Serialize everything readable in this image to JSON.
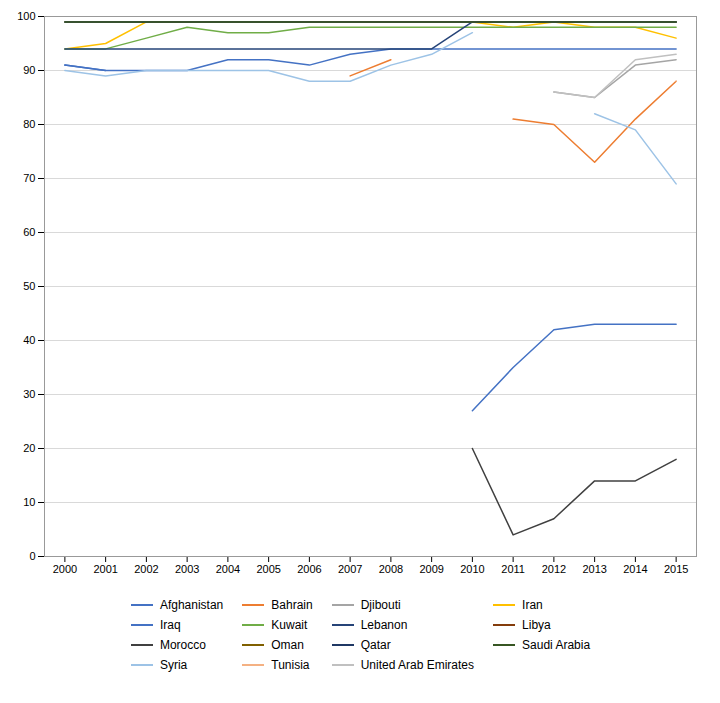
{
  "chart_data": {
    "type": "line",
    "x": [
      2000,
      2001,
      2002,
      2003,
      2004,
      2005,
      2006,
      2007,
      2008,
      2009,
      2010,
      2011,
      2012,
      2013,
      2014,
      2015
    ],
    "series": [
      {
        "name": "Afghanistan",
        "color": "#4472C4",
        "values": [
          91,
          90,
          null,
          null,
          null,
          null,
          null,
          null,
          null,
          null,
          27,
          35,
          42,
          43,
          43,
          43
        ]
      },
      {
        "name": "Bahrain",
        "color": "#ED7D31",
        "values": [
          null,
          null,
          null,
          null,
          null,
          null,
          null,
          89,
          92,
          null,
          null,
          81,
          80,
          73,
          81,
          88
        ]
      },
      {
        "name": "Djibouti",
        "color": "#A5A5A5",
        "values": [
          null,
          null,
          null,
          null,
          null,
          null,
          null,
          null,
          null,
          null,
          null,
          null,
          86,
          85,
          91,
          92
        ]
      },
      {
        "name": "Iran",
        "color": "#FFC000",
        "values": [
          94,
          95,
          99,
          99,
          99,
          99,
          99,
          99,
          99,
          99,
          99,
          98,
          99,
          98,
          98,
          96
        ]
      },
      {
        "name": "Iraq",
        "color": "#4472C4",
        "values": [
          91,
          90,
          90,
          90,
          92,
          92,
          91,
          93,
          94,
          94,
          94,
          94,
          94,
          94,
          94,
          94
        ]
      },
      {
        "name": "Kuwait",
        "color": "#70AD47",
        "values": [
          94,
          94,
          96,
          98,
          97,
          97,
          98,
          98,
          98,
          98,
          98,
          98,
          98,
          98,
          98,
          98
        ]
      },
      {
        "name": "Lebanon",
        "color": "#264478",
        "values": [
          94,
          94,
          94,
          94,
          94,
          94,
          94,
          94,
          94,
          94,
          99,
          99,
          99,
          99,
          99,
          99
        ]
      },
      {
        "name": "Libya",
        "color": "#843C0C",
        "values": [
          null,
          null,
          null,
          null,
          null,
          null,
          null,
          null,
          null,
          null,
          null,
          null,
          null,
          null,
          null,
          null
        ]
      },
      {
        "name": "Morocco",
        "color": "#404040",
        "values": [
          null,
          null,
          null,
          null,
          null,
          null,
          null,
          null,
          null,
          null,
          20,
          4,
          7,
          14,
          14,
          18
        ]
      },
      {
        "name": "Oman",
        "color": "#806000",
        "values": [
          99,
          99,
          99,
          99,
          99,
          99,
          99,
          99,
          99,
          99,
          99,
          99,
          99,
          99,
          99,
          99
        ]
      },
      {
        "name": "Qatar",
        "color": "#1F3864",
        "values": [
          99,
          99,
          99,
          99,
          99,
          99,
          99,
          99,
          99,
          99,
          99,
          99,
          99,
          99,
          99,
          99
        ]
      },
      {
        "name": "Saudi Arabia",
        "color": "#375623",
        "values": [
          99,
          99,
          99,
          99,
          99,
          99,
          99,
          99,
          99,
          99,
          99,
          99,
          99,
          99,
          99,
          99
        ]
      },
      {
        "name": "Syria",
        "color": "#9DC3E6",
        "values": [
          90,
          89,
          90,
          90,
          90,
          90,
          88,
          88,
          91,
          93,
          97,
          null,
          null,
          82,
          79,
          69
        ]
      },
      {
        "name": "Tunisia",
        "color": "#F4B183",
        "values": [
          null,
          null,
          null,
          null,
          null,
          null,
          null,
          null,
          null,
          null,
          null,
          null,
          null,
          null,
          null,
          88
        ]
      },
      {
        "name": "United Arab Emirates",
        "color": "#C0C0C0",
        "values": [
          null,
          null,
          null,
          null,
          null,
          null,
          null,
          null,
          null,
          null,
          null,
          null,
          86,
          85,
          92,
          93
        ]
      }
    ],
    "xlim": [
      1999.5,
      2015.5
    ],
    "xticks": [
      2000,
      2001,
      2002,
      2003,
      2004,
      2005,
      2006,
      2007,
      2008,
      2009,
      2010,
      2011,
      2012,
      2013,
      2014,
      2015
    ],
    "ylim": [
      0,
      100
    ],
    "yticks": [
      0,
      10,
      20,
      30,
      40,
      50,
      60,
      70,
      80,
      90,
      100
    ],
    "grid": "y",
    "legend": "bottom"
  }
}
